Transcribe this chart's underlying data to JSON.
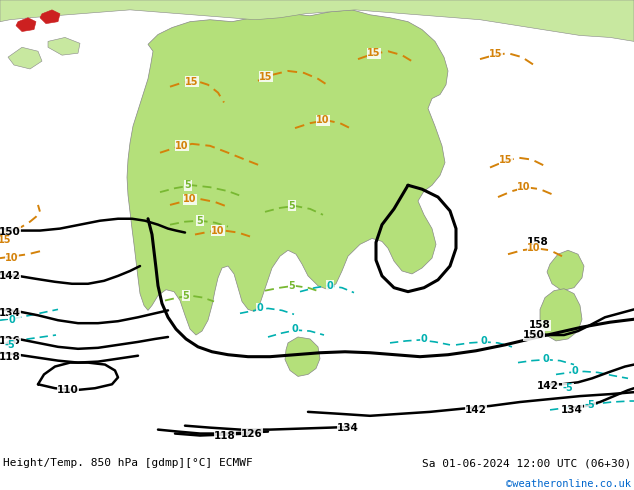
{
  "title_left": "Height/Temp. 850 hPa [gdmp][°C] ECMWF",
  "title_right": "Sa 01-06-2024 12:00 UTC (06+30)",
  "credit": "©weatheronline.co.uk",
  "credit_color": "#0066cc",
  "ocean_color": "#c8d4dc",
  "land_color": "#c8e8a0",
  "aus_color": "#b4e07a",
  "fig_width": 6.34,
  "fig_height": 4.9,
  "dpi": 100,
  "orange": "#d4820a",
  "green": "#78b832",
  "cyan": "#00b0b0",
  "black": "#000000"
}
